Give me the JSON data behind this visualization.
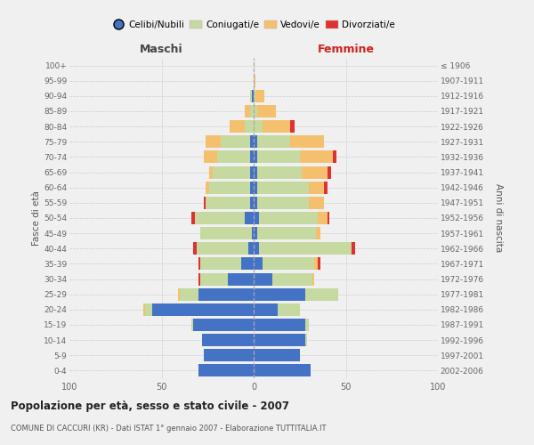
{
  "age_groups": [
    "0-4",
    "5-9",
    "10-14",
    "15-19",
    "20-24",
    "25-29",
    "30-34",
    "35-39",
    "40-44",
    "45-49",
    "50-54",
    "55-59",
    "60-64",
    "65-69",
    "70-74",
    "75-79",
    "80-84",
    "85-89",
    "90-94",
    "95-99",
    "100+"
  ],
  "birth_years": [
    "2002-2006",
    "1997-2001",
    "1992-1996",
    "1987-1991",
    "1982-1986",
    "1977-1981",
    "1972-1976",
    "1967-1971",
    "1962-1966",
    "1957-1961",
    "1952-1956",
    "1947-1951",
    "1942-1946",
    "1937-1941",
    "1932-1936",
    "1927-1931",
    "1922-1926",
    "1917-1921",
    "1912-1916",
    "1907-1911",
    "≤ 1906"
  ],
  "maschi_celibi": [
    30,
    27,
    28,
    33,
    55,
    30,
    14,
    7,
    3,
    1,
    5,
    2,
    2,
    2,
    2,
    2,
    0,
    0,
    1,
    0,
    0
  ],
  "maschi_coniugati": [
    0,
    0,
    0,
    1,
    4,
    10,
    15,
    22,
    28,
    28,
    27,
    24,
    22,
    20,
    18,
    16,
    5,
    2,
    1,
    0,
    0
  ],
  "maschi_vedovi": [
    0,
    0,
    0,
    0,
    1,
    1,
    0,
    0,
    0,
    0,
    0,
    0,
    2,
    2,
    7,
    8,
    8,
    3,
    0,
    0,
    0
  ],
  "maschi_divorziati": [
    0,
    0,
    0,
    0,
    0,
    0,
    1,
    1,
    2,
    0,
    2,
    1,
    0,
    0,
    0,
    0,
    0,
    0,
    0,
    0,
    0
  ],
  "femmine_nubili": [
    31,
    25,
    28,
    28,
    13,
    28,
    10,
    5,
    3,
    2,
    3,
    2,
    2,
    2,
    2,
    2,
    0,
    0,
    0,
    0,
    0
  ],
  "femmine_coniugate": [
    0,
    0,
    1,
    2,
    12,
    18,
    22,
    28,
    50,
    32,
    32,
    28,
    28,
    24,
    23,
    18,
    5,
    2,
    1,
    0,
    0
  ],
  "femmine_vedove": [
    0,
    0,
    0,
    0,
    0,
    0,
    1,
    2,
    0,
    2,
    5,
    8,
    8,
    14,
    18,
    18,
    15,
    10,
    5,
    1,
    0
  ],
  "femmine_divorziate": [
    0,
    0,
    0,
    0,
    0,
    0,
    0,
    1,
    2,
    0,
    1,
    0,
    2,
    2,
    2,
    0,
    2,
    0,
    0,
    0,
    0
  ],
  "color_celibi": "#4472c4",
  "color_coniugati": "#c5d9a0",
  "color_vedovi": "#f5c06e",
  "color_divorziati": "#e03030",
  "legend_labels": [
    "Celibi/Nubili",
    "Coniugati/e",
    "Vedovi/e",
    "Divorziati/e"
  ],
  "title": "Popolazione per età, sesso e stato civile - 2007",
  "subtitle": "COMUNE DI CACCURI (KR) - Dati ISTAT 1° gennaio 2007 - Elaborazione TUTTITALIA.IT",
  "label_maschi": "Maschi",
  "label_femmine": "Femmine",
  "label_fasce": "Fasce di età",
  "label_anni": "Anni di nascita",
  "xlim": 100,
  "bg_color": "#f0f0f0"
}
